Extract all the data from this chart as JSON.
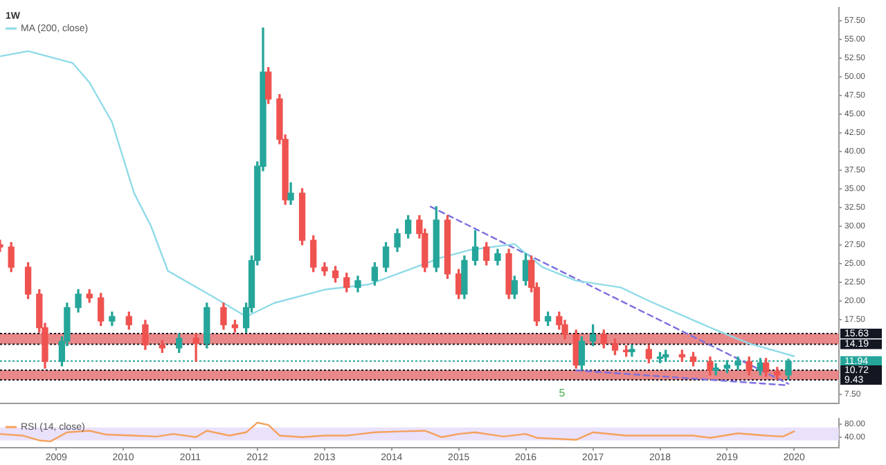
{
  "chart_data": [
    {
      "type": "candlestick",
      "title": "1W",
      "legend": "top left",
      "tick_labels": "y",
      "x": [
        "2008-03",
        "2008-05",
        "2008-08",
        "2008-10",
        "2008-11",
        "2009-02",
        "2009-03",
        "2009-05",
        "2009-07",
        "2009-09",
        "2009-11",
        "2010-02",
        "2010-05",
        "2010-08",
        "2010-11",
        "2011-02",
        "2011-04",
        "2011-07",
        "2011-09",
        "2011-11",
        "2011-12",
        "2012-01",
        "2012-02",
        "2012-03",
        "2012-05",
        "2012-06",
        "2012-07",
        "2012-09",
        "2012-11",
        "2013-01",
        "2013-03",
        "2013-05",
        "2013-07",
        "2013-10",
        "2013-12",
        "2014-02",
        "2014-04",
        "2014-06",
        "2014-07",
        "2014-09",
        "2014-11",
        "2015-01",
        "2015-02",
        "2015-04",
        "2015-06",
        "2015-08",
        "2015-10",
        "2015-11",
        "2016-01",
        "2016-02",
        "2016-03",
        "2016-05",
        "2016-07",
        "2016-08",
        "2016-10",
        "2016-11",
        "2017-01",
        "2017-03",
        "2017-05",
        "2017-07",
        "2017-08",
        "2017-11",
        "2018-01",
        "2018-02",
        "2018-05",
        "2018-07",
        "2018-10",
        "2018-11",
        "2019-01",
        "2019-03",
        "2019-05",
        "2019-07",
        "2019-08",
        "2019-10",
        "2019-12"
      ],
      "ohlc": [
        [
          27.5,
          28.1,
          26.6,
          27.2
        ],
        [
          27.2,
          27.8,
          23.9,
          24.5
        ],
        [
          24.5,
          25.1,
          20.3,
          20.9
        ],
        [
          20.9,
          21.5,
          15.8,
          16.4
        ],
        [
          16.4,
          17.0,
          11.0,
          11.9
        ],
        [
          11.9,
          15.2,
          11.3,
          14.6
        ],
        [
          14.6,
          19.7,
          14.0,
          19.1
        ],
        [
          19.1,
          21.5,
          18.5,
          20.9
        ],
        [
          20.9,
          21.5,
          19.8,
          20.4
        ],
        [
          20.4,
          21.0,
          16.7,
          17.3
        ],
        [
          17.3,
          18.5,
          16.7,
          17.9
        ],
        [
          17.9,
          18.5,
          16.2,
          16.8
        ],
        [
          16.8,
          17.4,
          13.5,
          14.1
        ],
        [
          14.1,
          14.7,
          13.1,
          13.7
        ],
        [
          13.7,
          15.6,
          13.1,
          15.0
        ],
        [
          15.0,
          15.6,
          11.9,
          14.3
        ],
        [
          14.3,
          19.7,
          13.7,
          19.1
        ],
        [
          19.1,
          19.7,
          16.2,
          16.8
        ],
        [
          16.8,
          17.4,
          15.8,
          16.4
        ],
        [
          16.4,
          19.7,
          15.8,
          19.1
        ],
        [
          19.1,
          26.0,
          18.5,
          25.4
        ],
        [
          25.4,
          38.6,
          24.8,
          38.0
        ],
        [
          38.0,
          56.5,
          37.4,
          50.6
        ],
        [
          50.6,
          51.2,
          46.4,
          47.0
        ],
        [
          47.0,
          47.6,
          41.0,
          41.6
        ],
        [
          41.6,
          42.2,
          32.9,
          33.5
        ],
        [
          33.5,
          35.8,
          32.9,
          34.4
        ],
        [
          34.4,
          35.0,
          27.5,
          28.1
        ],
        [
          28.1,
          28.7,
          23.9,
          24.5
        ],
        [
          24.5,
          25.1,
          23.4,
          24.0
        ],
        [
          24.0,
          24.6,
          22.5,
          23.1
        ],
        [
          23.1,
          23.7,
          21.2,
          21.8
        ],
        [
          21.8,
          23.3,
          21.2,
          22.7
        ],
        [
          22.7,
          25.1,
          22.1,
          24.5
        ],
        [
          24.5,
          27.8,
          23.9,
          27.2
        ],
        [
          27.2,
          29.6,
          26.6,
          29.0
        ],
        [
          29.0,
          31.4,
          28.4,
          30.8
        ],
        [
          30.8,
          31.4,
          28.4,
          29.0
        ],
        [
          29.0,
          29.6,
          23.9,
          24.5
        ],
        [
          24.5,
          32.6,
          23.9,
          30.8
        ],
        [
          30.8,
          31.4,
          23.0,
          23.6
        ],
        [
          23.6,
          24.2,
          20.3,
          20.9
        ],
        [
          20.9,
          26.0,
          20.3,
          25.4
        ],
        [
          25.4,
          29.4,
          24.8,
          27.2
        ],
        [
          27.2,
          27.8,
          24.8,
          25.4
        ],
        [
          25.4,
          26.9,
          24.8,
          26.3
        ],
        [
          26.3,
          26.9,
          20.3,
          20.9
        ],
        [
          20.9,
          23.3,
          20.3,
          22.7
        ],
        [
          22.7,
          26.3,
          22.1,
          25.4
        ],
        [
          25.4,
          26.0,
          21.2,
          21.8
        ],
        [
          21.8,
          22.4,
          16.7,
          17.3
        ],
        [
          17.3,
          18.5,
          16.7,
          17.9
        ],
        [
          17.9,
          18.5,
          16.2,
          16.8
        ],
        [
          16.8,
          17.4,
          14.9,
          15.5
        ],
        [
          15.5,
          16.1,
          11.0,
          11.4
        ],
        [
          11.4,
          15.2,
          10.8,
          14.6
        ],
        [
          14.6,
          16.8,
          14.0,
          15.5
        ],
        [
          15.5,
          16.1,
          13.7,
          14.3
        ],
        [
          14.3,
          14.9,
          12.8,
          13.4
        ],
        [
          13.4,
          14.0,
          12.6,
          13.2
        ],
        [
          13.2,
          14.1,
          12.6,
          13.5
        ],
        [
          13.5,
          14.1,
          11.7,
          12.3
        ],
        [
          12.3,
          13.1,
          11.7,
          12.5
        ],
        [
          12.5,
          13.4,
          11.9,
          12.8
        ],
        [
          12.8,
          13.4,
          11.9,
          12.5
        ],
        [
          12.5,
          13.1,
          11.3,
          11.9
        ],
        [
          11.9,
          12.5,
          10.1,
          10.7
        ],
        [
          10.7,
          11.6,
          10.1,
          11.0
        ],
        [
          11.0,
          12.0,
          10.4,
          11.4
        ],
        [
          11.4,
          12.5,
          10.8,
          11.9
        ],
        [
          11.9,
          12.5,
          10.1,
          10.7
        ],
        [
          10.7,
          12.3,
          10.1,
          11.7
        ],
        [
          11.7,
          12.3,
          9.9,
          10.5
        ],
        [
          10.5,
          11.1,
          9.5,
          10.1
        ],
        [
          10.1,
          12.2,
          9.5,
          11.9
        ]
      ],
      "colors": [
        "#ef5350",
        "#ef5350",
        "#ef5350",
        "#ef5350",
        "#ef5350",
        "#26a69a",
        "#26a69a",
        "#26a69a",
        "#ef5350",
        "#ef5350",
        "#26a69a",
        "#ef5350",
        "#ef5350",
        "#ef5350",
        "#26a69a",
        "#ef5350",
        "#26a69a",
        "#ef5350",
        "#ef5350",
        "#26a69a",
        "#26a69a",
        "#26a69a",
        "#26a69a",
        "#ef5350",
        "#ef5350",
        "#ef5350",
        "#26a69a",
        "#ef5350",
        "#ef5350",
        "#ef5350",
        "#ef5350",
        "#ef5350",
        "#26a69a",
        "#26a69a",
        "#26a69a",
        "#26a69a",
        "#26a69a",
        "#ef5350",
        "#ef5350",
        "#26a69a",
        "#ef5350",
        "#ef5350",
        "#26a69a",
        "#26a69a",
        "#ef5350",
        "#26a69a",
        "#ef5350",
        "#26a69a",
        "#26a69a",
        "#ef5350",
        "#ef5350",
        "#26a69a",
        "#ef5350",
        "#ef5350",
        "#ef5350",
        "#26a69a",
        "#26a69a",
        "#ef5350",
        "#ef5350",
        "#ef5350",
        "#26a69a",
        "#ef5350",
        "#26a69a",
        "#26a69a",
        "#ef5350",
        "#ef5350",
        "#ef5350",
        "#26a69a",
        "#26a69a",
        "#26a69a",
        "#ef5350",
        "#26a69a",
        "#ef5350",
        "#ef5350",
        "#26a69a"
      ],
      "series": [
        {
          "type": "line",
          "name": "MA (200, close)",
          "color": "#8fdbe8",
          "x": [
            "2008-03",
            "2008-08",
            "2009-04",
            "2009-07",
            "2009-11",
            "2010-03",
            "2010-06",
            "2010-09",
            "2011-05",
            "2011-11",
            "2012-04",
            "2013-01",
            "2013-09",
            "2014-10",
            "2015-03",
            "2015-11",
            "2016-04",
            "2016-10",
            "2017-06",
            "2017-11",
            "2018-11",
            "2019-05",
            "2020-01"
          ],
          "values": [
            52.7,
            53.4,
            51.8,
            49.2,
            43.9,
            34.4,
            30.0,
            24.0,
            20.6,
            17.9,
            19.7,
            21.5,
            22.2,
            25.8,
            26.8,
            27.6,
            24.5,
            22.7,
            21.8,
            20.0,
            16.1,
            14.3,
            12.6
          ]
        },
        {
          "type": "line",
          "color": "#7b6fe0",
          "line_style": "dashed",
          "x": [
            "2014-08",
            "2019-12"
          ],
          "values": [
            32.6,
            8.9
          ]
        },
        {
          "type": "line",
          "color": "#7b6fe0",
          "line_style": "dashed",
          "x": [
            "2016-10",
            "2019-12"
          ],
          "values": [
            10.7,
            8.7
          ]
        }
      ],
      "xlim": [
        "2008-03",
        "2020-09"
      ],
      "xticks": [
        "2009",
        "2010",
        "2011",
        "2012",
        "2013",
        "2014",
        "2015",
        "2016",
        "2017",
        "2018",
        "2019",
        "2020"
      ],
      "ylim": [
        6.3,
        59.2
      ],
      "yticks": [
        {
          "value": 7.5,
          "label": "7.50"
        },
        {
          "value": 17.5,
          "label": "17.50"
        },
        {
          "value": 20,
          "label": "20.00"
        },
        {
          "value": 22.5,
          "label": "22.50"
        },
        {
          "value": 25,
          "label": "25.00"
        },
        {
          "value": 27.5,
          "label": "27.50"
        },
        {
          "value": 30,
          "label": "30.00"
        },
        {
          "value": 32.5,
          "label": "32.50"
        },
        {
          "value": 35,
          "label": "35.00"
        },
        {
          "value": 37.5,
          "label": "37.50"
        },
        {
          "value": 40,
          "label": "40.00"
        },
        {
          "value": 42.5,
          "label": "42.50"
        },
        {
          "value": 45,
          "label": "45.00"
        },
        {
          "value": 47.5,
          "label": "47.50"
        },
        {
          "value": 50,
          "label": "50.00"
        },
        {
          "value": 52.5,
          "label": "52.50"
        },
        {
          "value": 55,
          "label": "55.00"
        },
        {
          "value": 57.5,
          "label": "57.50"
        }
      ],
      "bands": [
        {
          "axis": "y",
          "from": 14.19,
          "to": 15.63,
          "color": "#e57373"
        },
        {
          "axis": "y",
          "from": 9.43,
          "to": 10.72,
          "color": "#e57373"
        }
      ],
      "ref_lines": [
        {
          "axis": "y",
          "value": 15.63,
          "label": "15.63",
          "color": "#131722",
          "line_style": "dotted"
        },
        {
          "axis": "y",
          "value": 14.19,
          "label": "14.19",
          "color": "#131722",
          "line_style": "dotted"
        },
        {
          "axis": "y",
          "value": 11.94,
          "label": "11.94",
          "color": "#26a69a",
          "line_style": "dotted"
        },
        {
          "axis": "y",
          "value": 10.72,
          "label": "10.72",
          "color": "#131722",
          "line_style": "dotted"
        },
        {
          "axis": "y",
          "value": 9.43,
          "label": "9.43",
          "color": "#131722",
          "line_style": "dotted"
        }
      ],
      "annotations": [
        "5"
      ]
    },
    {
      "type": "line",
      "legend": "top left",
      "series": [
        {
          "name": "RSI (14, close)",
          "color": "#f5a15b",
          "x": [
            "2008-03",
            "2008-07",
            "2008-10",
            "2008-12",
            "2009-03",
            "2009-07",
            "2009-10",
            "2010-03",
            "2010-07",
            "2010-10",
            "2011-02",
            "2011-04",
            "2011-08",
            "2011-11",
            "2012-01",
            "2012-03",
            "2012-05",
            "2012-09",
            "2013-01",
            "2013-05",
            "2013-10",
            "2014-03",
            "2014-07",
            "2014-10",
            "2015-01",
            "2015-04",
            "2015-09",
            "2016-01",
            "2016-03",
            "2016-10",
            "2017-01",
            "2017-07",
            "2018-01",
            "2018-07",
            "2018-10",
            "2019-03",
            "2019-08",
            "2019-11",
            "2020-01"
          ],
          "values": [
            50,
            45,
            30,
            27,
            55,
            60,
            48,
            45,
            42,
            50,
            40,
            60,
            45,
            55,
            85,
            78,
            45,
            40,
            45,
            45,
            55,
            58,
            60,
            40,
            50,
            55,
            42,
            50,
            38,
            32,
            55,
            45,
            45,
            45,
            38,
            52,
            45,
            42,
            58
          ]
        }
      ],
      "xlim": [
        "2008-03",
        "2020-09"
      ],
      "xticks": [
        "2009",
        "2010",
        "2011",
        "2012",
        "2013",
        "2014",
        "2015",
        "2016",
        "2017",
        "2018",
        "2019",
        "2020"
      ],
      "ylim": [
        7,
        97
      ],
      "yticks": [
        {
          "value": 40,
          "label": "40.00"
        },
        {
          "value": 80,
          "label": "80.00"
        }
      ],
      "bands": [
        {
          "axis": "y",
          "from": 30,
          "to": 70,
          "color": "#e6dcfa"
        }
      ]
    }
  ]
}
